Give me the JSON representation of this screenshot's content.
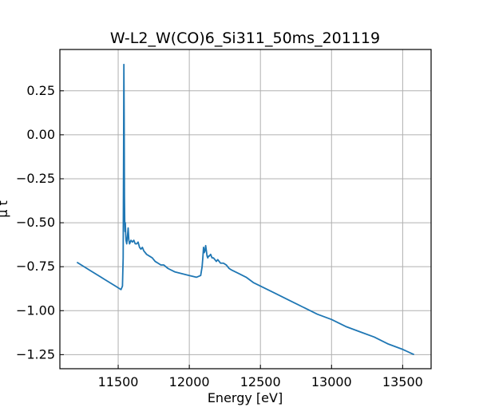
{
  "chart_data": {
    "type": "line",
    "title": "W-L2_W(CO)6_Si311_50ms_201119",
    "xlabel": "Energy [eV]",
    "ylabel": "μ t",
    "xlim": [
      11090,
      13700
    ],
    "ylim": [
      -1.33,
      0.485
    ],
    "xticks": [
      11500,
      12000,
      12500,
      13000,
      13500
    ],
    "yticks": [
      -1.25,
      -1.0,
      -0.75,
      -0.5,
      -0.25,
      0.0,
      0.25
    ],
    "ytick_labels": [
      "−1.25",
      "−1.00",
      "−0.75",
      "−0.50",
      "−0.25",
      "0.00",
      "0.25"
    ],
    "grid": true,
    "color": "#1f77b4",
    "series": [
      {
        "x": [
          11210,
          11300,
          11400,
          11480,
          11520,
          11530,
          11535,
          11538,
          11540,
          11542,
          11544,
          11546,
          11548,
          11550,
          11552,
          11555,
          11560,
          11565,
          11570,
          11575,
          11580,
          11585,
          11590,
          11600,
          11610,
          11620,
          11630,
          11640,
          11650,
          11660,
          11670,
          11680,
          11700,
          11720,
          11740,
          11760,
          11780,
          11800,
          11820,
          11850,
          11900,
          11950,
          12000,
          12050,
          12080,
          12090,
          12095,
          12100,
          12105,
          12110,
          12115,
          12120,
          12125,
          12130,
          12135,
          12140,
          12150,
          12160,
          12170,
          12180,
          12190,
          12200,
          12220,
          12240,
          12260,
          12280,
          12300,
          12350,
          12400,
          12450,
          12500,
          12600,
          12700,
          12800,
          12900,
          13000,
          13100,
          13200,
          13300,
          13400,
          13500,
          13580
        ],
        "y": [
          -0.725,
          -0.77,
          -0.82,
          -0.86,
          -0.88,
          -0.86,
          -0.7,
          -0.1,
          0.4,
          0.1,
          -0.35,
          -0.5,
          -0.55,
          -0.5,
          -0.55,
          -0.6,
          -0.62,
          -0.58,
          -0.53,
          -0.6,
          -0.62,
          -0.61,
          -0.6,
          -0.61,
          -0.6,
          -0.62,
          -0.62,
          -0.61,
          -0.64,
          -0.65,
          -0.64,
          -0.66,
          -0.68,
          -0.69,
          -0.7,
          -0.72,
          -0.73,
          -0.74,
          -0.74,
          -0.76,
          -0.78,
          -0.79,
          -0.8,
          -0.81,
          -0.8,
          -0.75,
          -0.7,
          -0.64,
          -0.67,
          -0.66,
          -0.63,
          -0.66,
          -0.69,
          -0.7,
          -0.69,
          -0.69,
          -0.68,
          -0.7,
          -0.7,
          -0.71,
          -0.72,
          -0.71,
          -0.73,
          -0.73,
          -0.74,
          -0.76,
          -0.77,
          -0.79,
          -0.81,
          -0.84,
          -0.86,
          -0.9,
          -0.94,
          -0.98,
          -1.02,
          -1.05,
          -1.09,
          -1.12,
          -1.15,
          -1.19,
          -1.22,
          -1.25
        ]
      }
    ]
  }
}
